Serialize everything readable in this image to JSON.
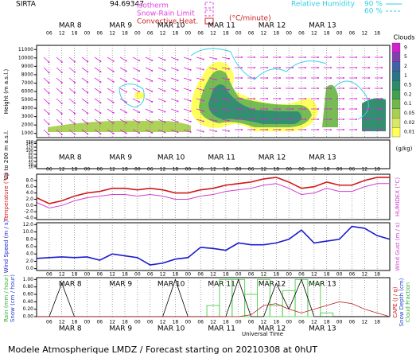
{
  "chart_data": [
    {
      "type": "contour",
      "station": "SIRTA",
      "coords": "94.69347",
      "legend_left": [
        {
          "label": "Isotherm",
          "color": "#e040e0"
        },
        {
          "label": "Snow-Rain Limit",
          "color": "#e040e0"
        },
        {
          "label": "Convective Heat.",
          "color": "#d02020"
        }
      ],
      "heat_unit": "(°C/minute)",
      "legend_right": [
        {
          "label": "Relative Humidity",
          "color": "#30d0e0"
        },
        {
          "label": "90 %",
          "color": "#30d0e0"
        },
        {
          "label": "60 %",
          "color": "#30d0e0"
        }
      ],
      "ylabel": "Height (m a.s.l.)",
      "strip_label": "Up to 200 m a.s.l.",
      "ylim": [
        500,
        11500
      ],
      "yticks": [
        1000,
        2000,
        3000,
        4000,
        5000,
        6000,
        7000,
        8000,
        9000,
        10000,
        11000
      ],
      "strip_ylim": [
        0,
        160
      ],
      "strip_yticks": [
        10,
        20,
        40,
        60,
        80,
        100,
        120,
        140,
        150
      ],
      "colorbar_title": "Clouds",
      "colorbar_unit": "(g/kg)",
      "levels": [
        0.01,
        0.02,
        0.05,
        0.1,
        0.2,
        0.5,
        1,
        2,
        5,
        9
      ],
      "level_colors": [
        "#ffff55",
        "#d8e860",
        "#a8d050",
        "#70b84c",
        "#40a050",
        "#2a8a6a",
        "#2a7488",
        "#4060a8",
        "#8040b0",
        "#d020d0"
      ],
      "xlim": [
        0,
        168
      ],
      "xticks": [
        {
          "value": 6,
          "label": "06"
        },
        {
          "value": 12,
          "label": "12"
        },
        18,
        {
          "value": 24,
          "label": "00"
        },
        {
          "value": 30,
          "label": "06"
        },
        {
          "value": 36,
          "label": "12"
        },
        {
          "value": 42,
          "label": "18"
        },
        {
          "value": 48,
          "label": "00"
        },
        {
          "value": 54,
          "label": "06"
        },
        {
          "value": 60,
          "label": "12"
        },
        {
          "value": 66,
          "label": "18"
        },
        {
          "value": 72,
          "label": "00"
        },
        {
          "value": 78,
          "label": "06"
        },
        {
          "value": 84,
          "label": "12"
        },
        {
          "value": 90,
          "label": "18"
        },
        {
          "value": 96,
          "label": "00"
        },
        {
          "value": 102,
          "label": "06"
        },
        {
          "value": 108,
          "label": "12"
        },
        {
          "value": 114,
          "label": "18"
        },
        {
          "value": 120,
          "label": "00"
        },
        {
          "value": 126,
          "label": "06"
        },
        {
          "value": 132,
          "label": "12"
        },
        {
          "value": 138,
          "label": "18"
        },
        {
          "value": 144,
          "label": "00"
        },
        {
          "value": 150,
          "label": "06"
        },
        {
          "value": 156,
          "label": "12"
        },
        {
          "value": 162,
          "label": "18"
        }
      ],
      "day_labels": [
        {
          "value": 16,
          "label": "MAR 8"
        },
        {
          "value": 40,
          "label": "MAR 9"
        },
        {
          "value": 64,
          "label": "MAR 10"
        },
        {
          "value": 88,
          "label": "MAR 11"
        },
        {
          "value": 112,
          "label": "MAR 12"
        },
        {
          "value": 136,
          "label": "MAR 13"
        }
      ]
    },
    {
      "type": "line",
      "left_label": "Temperature (°C)",
      "right_label": "HUMIDEX (°C)",
      "x": [
        0,
        6,
        12,
        18,
        24,
        30,
        36,
        42,
        48,
        54,
        60,
        66,
        72,
        78,
        84,
        90,
        96,
        102,
        108,
        114,
        120,
        126,
        132,
        138,
        144,
        150,
        156,
        162,
        168
      ],
      "ylim": [
        -4.5,
        10
      ],
      "yticks": [
        {
          "value": -4,
          "label": "-4.0"
        },
        {
          "value": -2,
          "label": "-2.0"
        },
        {
          "value": 0,
          "label": "0.0"
        },
        {
          "value": 2,
          "label": "2.0"
        },
        {
          "value": 4,
          "label": "4.0"
        },
        {
          "value": 6,
          "label": "6.0"
        },
        {
          "value": 8,
          "label": "8.0"
        }
      ],
      "series": [
        {
          "color": "#d01818",
          "values": [
            2.5,
            0.6,
            1.5,
            3,
            4,
            4.5,
            5.5,
            5.5,
            5,
            5.5,
            5,
            4,
            4,
            5,
            5.5,
            6.5,
            7,
            7.5,
            8.5,
            9,
            7.5,
            5.5,
            6,
            7.5,
            6.5,
            6.5,
            8,
            9,
            9
          ]
        },
        {
          "color": "#d040d0",
          "values": [
            1,
            -0.8,
            0,
            1.5,
            2.5,
            3,
            3.5,
            3.5,
            3,
            3.5,
            3,
            2,
            2,
            3,
            3.5,
            4.5,
            5,
            5.5,
            6.5,
            7,
            5.5,
            3.5,
            4,
            5.5,
            4.5,
            4.5,
            6,
            7,
            7
          ]
        }
      ]
    },
    {
      "type": "line",
      "left_label": "Wind Speed (m / s)",
      "right_label": "Wind Gust (m / s)",
      "x": [
        0,
        6,
        12,
        18,
        24,
        30,
        36,
        42,
        48,
        54,
        60,
        66,
        72,
        78,
        84,
        90,
        96,
        102,
        108,
        114,
        120,
        126,
        132,
        138,
        144,
        150,
        156,
        162,
        168
      ],
      "ylim": [
        -0.5,
        12.5
      ],
      "yticks": [
        {
          "value": 0,
          "label": "0.0"
        },
        {
          "value": 2,
          "label": "2.0"
        },
        {
          "value": 4,
          "label": "4.0"
        },
        {
          "value": 6,
          "label": "6.0"
        },
        {
          "value": 8,
          "label": "8.0"
        },
        {
          "value": 10,
          "label": "10.0"
        },
        {
          "value": 12,
          "label": "12.0"
        }
      ],
      "series": [
        {
          "color": "#1a1ad0",
          "values": [
            2.8,
            3,
            3.2,
            3,
            3.2,
            2.3,
            4,
            3.5,
            3,
            1,
            1.5,
            2.6,
            3,
            5.8,
            5.5,
            5,
            7,
            6.5,
            6.5,
            7,
            8,
            10.5,
            7,
            7.5,
            8,
            11.5,
            11,
            9,
            8
          ]
        }
      ]
    },
    {
      "type": "mixed",
      "left_labels": [
        "Rain (mm / hour)",
        "Snow (cm / hour)"
      ],
      "right_labels": [
        "CAPE (J / g)",
        "Snow Depth (cm)",
        "Cloud Fraction"
      ],
      "xlabel": "Universal Time",
      "x": [
        0,
        6,
        12,
        18,
        24,
        30,
        36,
        42,
        48,
        54,
        60,
        66,
        72,
        78,
        84,
        90,
        96,
        102,
        108,
        114,
        120,
        126,
        132,
        138,
        144,
        150,
        156,
        162,
        168
      ],
      "ylim": [
        0,
        1.05
      ],
      "yticks": [
        {
          "value": 0,
          "label": "0.00"
        },
        {
          "value": 0.2,
          "label": "0.20"
        },
        {
          "value": 0.4,
          "label": "0.40"
        },
        {
          "value": 0.6,
          "label": "0.60"
        },
        {
          "value": 0.8,
          "label": "0.80"
        },
        {
          "value": 1,
          "label": "1.00"
        }
      ],
      "series": [
        {
          "type": "bar",
          "color": "#60d060",
          "values": [
            0,
            0,
            0,
            0,
            0,
            0,
            0,
            0,
            0,
            0,
            0,
            0,
            0,
            0,
            0.3,
            1,
            1,
            0.6,
            1,
            0.3,
            0.7,
            1,
            0.9,
            0.1,
            0,
            0,
            0,
            0,
            0
          ]
        },
        {
          "type": "line",
          "color": "#000000",
          "values": [
            0,
            0,
            0.9,
            0,
            0,
            0,
            0,
            0,
            0,
            0,
            0,
            1,
            0,
            0,
            0,
            0,
            1,
            0,
            0,
            0.9,
            0.2,
            1,
            0,
            0,
            0,
            0,
            0,
            0,
            0
          ]
        },
        {
          "type": "line",
          "color": "#c02020",
          "values": [
            0,
            0,
            0,
            0,
            0,
            0,
            0,
            0,
            0,
            0,
            0,
            0,
            0,
            0,
            0,
            0,
            0,
            0.05,
            0.3,
            0.35,
            0.2,
            0.1,
            0.2,
            0.3,
            0.4,
            0.35,
            0.2,
            0.1,
            0
          ]
        }
      ]
    },
    {
      "type": "footer",
      "text": "Modele Atmospherique LMDZ / Forecast starting on 20210308 at 0hUT"
    }
  ]
}
